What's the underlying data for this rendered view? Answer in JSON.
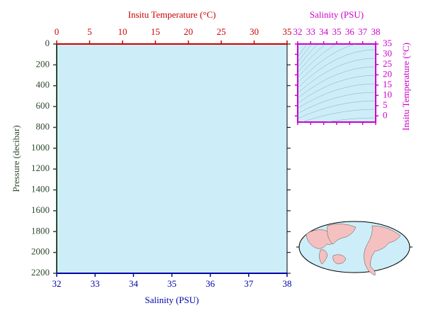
{
  "chart_data": [
    {
      "type": "profile",
      "ylabel": "Pressure (decibar)",
      "ylim": [
        0,
        2200
      ],
      "yticks": [
        0,
        200,
        400,
        600,
        800,
        1000,
        1200,
        1400,
        1600,
        1800,
        2000,
        2200
      ],
      "y_inverted": true,
      "xlabel": "Salinity (PSU)",
      "xlim": [
        32,
        38
      ],
      "xticks": [
        32,
        33,
        34,
        35,
        36,
        37,
        38
      ],
      "x2label": "Insitu Temperature (°C)",
      "x2lim": [
        0,
        35
      ],
      "x2ticks": [
        0,
        5,
        10,
        15,
        20,
        25,
        30,
        35
      ],
      "background": "#cdeef8",
      "ycolor": "#2d4a2d",
      "xcolor": "#0000aa",
      "x2color": "#cc0000"
    },
    {
      "type": "ts-diagram",
      "xlabel": "Salinity (PSU)",
      "xlim": [
        32,
        38
      ],
      "xticks": [
        32,
        33,
        34,
        35,
        36,
        37,
        38
      ],
      "ylabel": "Insitu Temperature (°C)",
      "ylim": [
        -3,
        35
      ],
      "yticks": [
        0,
        5,
        10,
        15,
        20,
        25,
        30,
        35
      ],
      "color": "#cc00cc",
      "background": "#cdeef8"
    }
  ]
}
